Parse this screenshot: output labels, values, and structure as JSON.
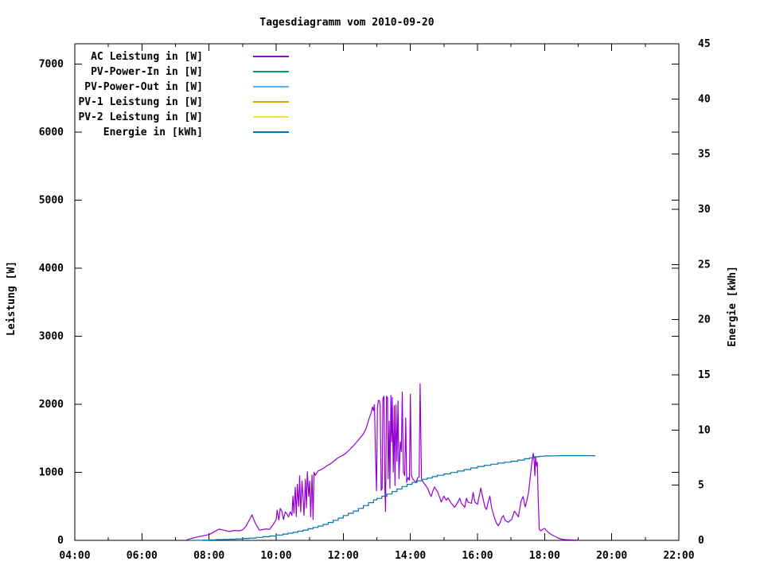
{
  "background": "#ffffff",
  "chart_data": {
    "type": "line",
    "title": "Tagesdiagramm vom 2010-09-20",
    "xlabel": "",
    "ylabel": "Leistung [W]",
    "y2label": "Energie [kWh]",
    "xlim": [
      4,
      22
    ],
    "ylim": [
      0,
      7300
    ],
    "y2lim": [
      0,
      45
    ],
    "grid": false,
    "legend_position": "top-left-inside",
    "x_ticks": {
      "values": [
        4,
        6,
        8,
        10,
        12,
        14,
        16,
        18,
        20,
        22
      ],
      "labels": [
        "04:00",
        "06:00",
        "08:00",
        "10:00",
        "12:00",
        "14:00",
        "16:00",
        "18:00",
        "20:00",
        "22:00"
      ]
    },
    "x_minor_ticks": [
      5,
      7,
      9,
      11,
      13,
      15,
      17,
      19,
      21
    ],
    "y_ticks": {
      "values": [
        0,
        1000,
        2000,
        3000,
        4000,
        5000,
        6000,
        7000
      ],
      "labels": [
        "0",
        "1000",
        "2000",
        "3000",
        "4000",
        "5000",
        "6000",
        "7000"
      ]
    },
    "y2_ticks": {
      "values": [
        0,
        5,
        10,
        15,
        20,
        25,
        30,
        35,
        40,
        45
      ],
      "labels": [
        "0",
        "5",
        "10",
        "15",
        "20",
        "25",
        "30",
        "35",
        "40",
        "45"
      ]
    },
    "series": [
      {
        "label": "AC Leistung in [W]",
        "color": "#9400d3",
        "axis": "y",
        "render": "line",
        "points": [
          [
            7.33,
            5
          ],
          [
            7.45,
            25
          ],
          [
            7.6,
            45
          ],
          [
            7.8,
            65
          ],
          [
            8.0,
            85
          ],
          [
            8.15,
            125
          ],
          [
            8.3,
            165
          ],
          [
            8.45,
            150
          ],
          [
            8.6,
            130
          ],
          [
            8.75,
            145
          ],
          [
            8.9,
            140
          ],
          [
            9.0,
            155
          ],
          [
            9.1,
            205
          ],
          [
            9.2,
            300
          ],
          [
            9.28,
            375
          ],
          [
            9.38,
            250
          ],
          [
            9.5,
            150
          ],
          [
            9.6,
            158
          ],
          [
            9.7,
            168
          ],
          [
            9.8,
            160
          ],
          [
            9.9,
            225
          ],
          [
            10.0,
            305
          ],
          [
            10.03,
            445
          ],
          [
            10.08,
            300
          ],
          [
            10.12,
            470
          ],
          [
            10.17,
            425
          ],
          [
            10.22,
            305
          ],
          [
            10.27,
            420
          ],
          [
            10.32,
            390
          ],
          [
            10.37,
            345
          ],
          [
            10.42,
            420
          ],
          [
            10.47,
            365
          ],
          [
            10.5,
            650
          ],
          [
            10.53,
            400
          ],
          [
            10.57,
            780
          ],
          [
            10.6,
            350
          ],
          [
            10.63,
            825
          ],
          [
            10.67,
            500
          ],
          [
            10.7,
            950
          ],
          [
            10.73,
            420
          ],
          [
            10.77,
            870
          ],
          [
            10.8,
            640
          ],
          [
            10.83,
            365
          ],
          [
            10.87,
            900
          ],
          [
            10.9,
            480
          ],
          [
            10.93,
            1010
          ],
          [
            10.97,
            645
          ],
          [
            11.0,
            870
          ],
          [
            11.03,
            345
          ],
          [
            11.07,
            960
          ],
          [
            11.1,
            305
          ],
          [
            11.13,
            1000
          ],
          [
            11.17,
            955
          ],
          [
            11.2,
            985
          ],
          [
            11.25,
            1020
          ],
          [
            11.32,
            1035
          ],
          [
            11.42,
            1065
          ],
          [
            11.52,
            1100
          ],
          [
            11.62,
            1125
          ],
          [
            11.72,
            1165
          ],
          [
            11.82,
            1205
          ],
          [
            11.92,
            1235
          ],
          [
            12.0,
            1255
          ],
          [
            12.1,
            1290
          ],
          [
            12.2,
            1340
          ],
          [
            12.3,
            1390
          ],
          [
            12.4,
            1445
          ],
          [
            12.5,
            1505
          ],
          [
            12.6,
            1565
          ],
          [
            12.68,
            1645
          ],
          [
            12.73,
            1725
          ],
          [
            12.78,
            1805
          ],
          [
            12.83,
            1875
          ],
          [
            12.87,
            1960
          ],
          [
            12.9,
            1905
          ],
          [
            12.93,
            1995
          ],
          [
            12.96,
            1285
          ],
          [
            12.99,
            730
          ],
          [
            13.02,
            1950
          ],
          [
            13.05,
            2060
          ],
          [
            13.08,
            2050
          ],
          [
            13.1,
            1990
          ],
          [
            13.13,
            735
          ],
          [
            13.16,
            765
          ],
          [
            13.18,
            2080
          ],
          [
            13.21,
            2120
          ],
          [
            13.24,
            765
          ],
          [
            13.26,
            425
          ],
          [
            13.29,
            2120
          ],
          [
            13.32,
            2100
          ],
          [
            13.34,
            905
          ],
          [
            13.37,
            1750
          ],
          [
            13.39,
            765
          ],
          [
            13.42,
            2130
          ],
          [
            13.44,
            1450
          ],
          [
            13.46,
            2100
          ],
          [
            13.49,
            1005
          ],
          [
            13.52,
            1980
          ],
          [
            13.54,
            805
          ],
          [
            13.57,
            1990
          ],
          [
            13.6,
            1160
          ],
          [
            13.63,
            2050
          ],
          [
            13.66,
            905
          ],
          [
            13.7,
            1450
          ],
          [
            13.73,
            1305
          ],
          [
            13.76,
            2180
          ],
          [
            13.79,
            1005
          ],
          [
            13.83,
            955
          ],
          [
            13.86,
            1800
          ],
          [
            13.89,
            855
          ],
          [
            13.93,
            925
          ],
          [
            13.97,
            885
          ],
          [
            14.0,
            2150
          ],
          [
            14.03,
            955
          ],
          [
            14.07,
            905
          ],
          [
            14.12,
            875
          ],
          [
            14.17,
            855
          ],
          [
            14.22,
            920
          ],
          [
            14.26,
            930
          ],
          [
            14.29,
            2300
          ],
          [
            14.33,
            905
          ],
          [
            14.38,
            855
          ],
          [
            14.43,
            825
          ],
          [
            14.48,
            790
          ],
          [
            14.52,
            760
          ],
          [
            14.57,
            690
          ],
          [
            14.62,
            645
          ],
          [
            14.67,
            725
          ],
          [
            14.72,
            785
          ],
          [
            14.82,
            705
          ],
          [
            14.92,
            565
          ],
          [
            15.0,
            650
          ],
          [
            15.07,
            590
          ],
          [
            15.12,
            625
          ],
          [
            15.22,
            545
          ],
          [
            15.32,
            485
          ],
          [
            15.42,
            565
          ],
          [
            15.47,
            620
          ],
          [
            15.52,
            545
          ],
          [
            15.62,
            485
          ],
          [
            15.67,
            620
          ],
          [
            15.72,
            560
          ],
          [
            15.82,
            545
          ],
          [
            15.87,
            705
          ],
          [
            15.92,
            565
          ],
          [
            16.0,
            530
          ],
          [
            16.1,
            770
          ],
          [
            16.17,
            600
          ],
          [
            16.22,
            490
          ],
          [
            16.27,
            455
          ],
          [
            16.32,
            565
          ],
          [
            16.37,
            650
          ],
          [
            16.42,
            480
          ],
          [
            16.52,
            310
          ],
          [
            16.57,
            250
          ],
          [
            16.62,
            215
          ],
          [
            16.67,
            260
          ],
          [
            16.72,
            330
          ],
          [
            16.77,
            365
          ],
          [
            16.82,
            300
          ],
          [
            16.87,
            280
          ],
          [
            16.92,
            265
          ],
          [
            16.97,
            290
          ],
          [
            17.02,
            310
          ],
          [
            17.1,
            430
          ],
          [
            17.17,
            385
          ],
          [
            17.22,
            345
          ],
          [
            17.3,
            580
          ],
          [
            17.36,
            645
          ],
          [
            17.42,
            490
          ],
          [
            17.46,
            565
          ],
          [
            17.52,
            700
          ],
          [
            17.57,
            920
          ],
          [
            17.62,
            1150
          ],
          [
            17.66,
            1280
          ],
          [
            17.69,
            1140
          ],
          [
            17.71,
            950
          ],
          [
            17.73,
            1230
          ],
          [
            17.76,
            1090
          ],
          [
            17.78,
            1150
          ],
          [
            17.81,
            600
          ],
          [
            17.84,
            160
          ],
          [
            17.89,
            140
          ],
          [
            17.95,
            165
          ],
          [
            18.0,
            175
          ],
          [
            18.06,
            140
          ],
          [
            18.12,
            115
          ],
          [
            18.2,
            85
          ],
          [
            18.3,
            60
          ],
          [
            18.4,
            35
          ],
          [
            18.5,
            18
          ],
          [
            18.6,
            12
          ],
          [
            18.75,
            8
          ],
          [
            19.0,
            5
          ]
        ]
      },
      {
        "label": "PV-Power-In in [W]",
        "color": "#009e73",
        "axis": "y",
        "render": "line",
        "points": []
      },
      {
        "label": "PV-Power-Out in [W]",
        "color": "#56b4e9",
        "axis": "y",
        "render": "line",
        "points": []
      },
      {
        "label": "PV-1 Leistung in [W]",
        "color": "#e69f00",
        "axis": "y",
        "render": "line",
        "points": []
      },
      {
        "label": "PV-2 Leistung in [W]",
        "color": "#f0e442",
        "axis": "y",
        "render": "line",
        "points": []
      },
      {
        "label": "Energie in [kWh]",
        "color": "#0072b2",
        "axis": "y2",
        "render": "steps",
        "points": [
          [
            7.4,
            0
          ],
          [
            7.6,
            0.01
          ],
          [
            7.8,
            0.03
          ],
          [
            8.0,
            0.05
          ],
          [
            8.2,
            0.07
          ],
          [
            8.4,
            0.09
          ],
          [
            8.6,
            0.11
          ],
          [
            8.8,
            0.14
          ],
          [
            9.0,
            0.17
          ],
          [
            9.2,
            0.21
          ],
          [
            9.4,
            0.27
          ],
          [
            9.6,
            0.33
          ],
          [
            9.8,
            0.4
          ],
          [
            10.0,
            0.48
          ],
          [
            10.2,
            0.57
          ],
          [
            10.35,
            0.65
          ],
          [
            10.5,
            0.73
          ],
          [
            10.65,
            0.83
          ],
          [
            10.8,
            0.93
          ],
          [
            10.95,
            1.05
          ],
          [
            11.1,
            1.17
          ],
          [
            11.25,
            1.3
          ],
          [
            11.4,
            1.45
          ],
          [
            11.55,
            1.62
          ],
          [
            11.7,
            1.82
          ],
          [
            11.85,
            2.02
          ],
          [
            12.0,
            2.25
          ],
          [
            12.15,
            2.45
          ],
          [
            12.3,
            2.66
          ],
          [
            12.45,
            2.9
          ],
          [
            12.6,
            3.15
          ],
          [
            12.75,
            3.42
          ],
          [
            12.9,
            3.66
          ],
          [
            13.0,
            3.8
          ],
          [
            13.15,
            4.0
          ],
          [
            13.3,
            4.2
          ],
          [
            13.45,
            4.42
          ],
          [
            13.6,
            4.65
          ],
          [
            13.75,
            4.88
          ],
          [
            13.9,
            5.08
          ],
          [
            14.05,
            5.25
          ],
          [
            14.2,
            5.4
          ],
          [
            14.35,
            5.53
          ],
          [
            14.5,
            5.65
          ],
          [
            14.65,
            5.78
          ],
          [
            14.8,
            5.9
          ],
          [
            15.0,
            6.02
          ],
          [
            15.2,
            6.15
          ],
          [
            15.4,
            6.28
          ],
          [
            15.6,
            6.42
          ],
          [
            15.8,
            6.56
          ],
          [
            16.0,
            6.7
          ],
          [
            16.2,
            6.8
          ],
          [
            16.4,
            6.9
          ],
          [
            16.6,
            7.0
          ],
          [
            16.8,
            7.08
          ],
          [
            17.0,
            7.17
          ],
          [
            17.2,
            7.28
          ],
          [
            17.4,
            7.4
          ],
          [
            17.55,
            7.48
          ],
          [
            17.7,
            7.57
          ],
          [
            17.85,
            7.62
          ],
          [
            18.0,
            7.65
          ],
          [
            18.2,
            7.66
          ],
          [
            18.4,
            7.67
          ],
          [
            19.5,
            7.67
          ]
        ]
      }
    ]
  }
}
